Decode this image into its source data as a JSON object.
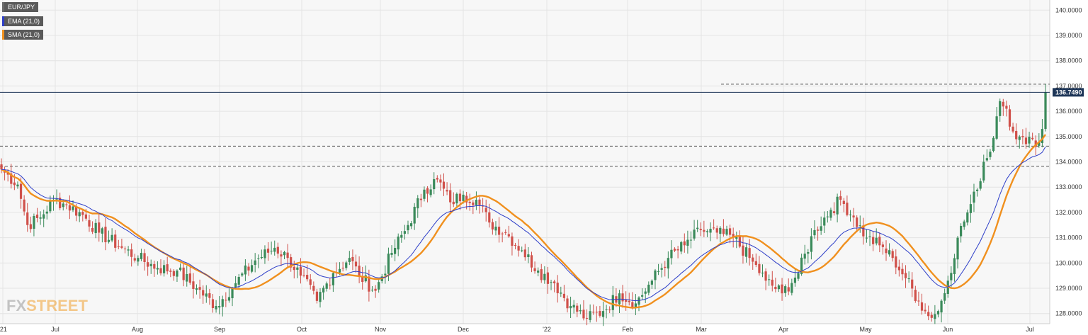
{
  "legend": {
    "price_label": "EUR/JPY",
    "ema_label": "EMA (21,0)",
    "sma_label": "SMA (21,0)"
  },
  "logo": {
    "fx": "FX",
    "street": "STREET"
  },
  "colors": {
    "up": "#3a8a5a",
    "down": "#d0504a",
    "ema": "#2d3ec8",
    "sma": "#f0901e",
    "last_price_bg": "#1d3557",
    "plot_bg": "#f7f7f7"
  },
  "chart_data": {
    "type": "candlestick",
    "symbol": "EUR/JPY",
    "ylim": [
      127.6,
      140.4
    ],
    "y_ticks": [
      "128.0000",
      "129.0000",
      "130.0000",
      "131.0000",
      "132.0000",
      "133.0000",
      "134.0000",
      "135.0000",
      "136.0000",
      "137.0000",
      "138.0000",
      "139.0000",
      "140.0000"
    ],
    "x_ticks": [
      "'21",
      "Jul",
      "Aug",
      "Sep",
      "Oct",
      "Nov",
      "Dec",
      "'22",
      "Feb",
      "Mar",
      "Apr",
      "May",
      "Jun",
      "Jul"
    ],
    "last_price": "136.7490",
    "horizontal_levels": [
      137.07,
      134.62,
      133.82
    ],
    "close_anchors": [
      [
        0,
        133.7
      ],
      [
        5,
        133.1
      ],
      [
        8,
        131.5
      ],
      [
        12,
        131.8
      ],
      [
        16,
        132.5
      ],
      [
        20,
        132.3
      ],
      [
        25,
        131.9
      ],
      [
        30,
        131.2
      ],
      [
        37,
        130.6
      ],
      [
        42,
        130.2
      ],
      [
        48,
        129.8
      ],
      [
        54,
        129.7
      ],
      [
        60,
        129.0
      ],
      [
        66,
        128.3
      ],
      [
        72,
        129.2
      ],
      [
        78,
        130.1
      ],
      [
        84,
        130.6
      ],
      [
        88,
        130.2
      ],
      [
        92,
        129.5
      ],
      [
        97,
        128.5
      ],
      [
        102,
        129.6
      ],
      [
        107,
        130.2
      ],
      [
        110,
        129.5
      ],
      [
        115,
        128.9
      ],
      [
        120,
        130.4
      ],
      [
        125,
        131.5
      ],
      [
        130,
        132.9
      ],
      [
        134,
        133.3
      ],
      [
        138,
        132.4
      ],
      [
        142,
        132.7
      ],
      [
        146,
        132.5
      ],
      [
        150,
        131.6
      ],
      [
        155,
        131.2
      ],
      [
        160,
        130.5
      ],
      [
        165,
        129.7
      ],
      [
        170,
        129.2
      ],
      [
        175,
        128.3
      ],
      [
        180,
        127.8
      ],
      [
        185,
        128.1
      ],
      [
        190,
        128.8
      ],
      [
        195,
        128.4
      ],
      [
        200,
        129.3
      ],
      [
        205,
        130.2
      ],
      [
        210,
        130.7
      ],
      [
        215,
        131.3
      ],
      [
        220,
        131.2
      ],
      [
        225,
        131.0
      ],
      [
        230,
        130.2
      ],
      [
        235,
        129.3
      ],
      [
        240,
        128.8
      ],
      [
        245,
        129.6
      ],
      [
        250,
        131.3
      ],
      [
        255,
        132.1
      ],
      [
        258,
        132.5
      ],
      [
        262,
        131.8
      ],
      [
        266,
        131.0
      ],
      [
        270,
        130.7
      ],
      [
        274,
        130.2
      ],
      [
        278,
        129.4
      ],
      [
        282,
        128.5
      ],
      [
        285,
        127.9
      ],
      [
        288,
        128.1
      ],
      [
        291,
        129.3
      ],
      [
        294,
        131.0
      ],
      [
        297,
        132.0
      ],
      [
        300,
        132.9
      ],
      [
        302,
        134.0
      ],
      [
        304,
        134.4
      ],
      [
        306,
        135.8
      ],
      [
        307,
        136.4
      ],
      [
        309,
        136.1
      ],
      [
        311,
        135.2
      ],
      [
        313,
        135.0
      ],
      [
        315,
        134.7
      ],
      [
        317,
        134.9
      ],
      [
        319,
        134.8
      ],
      [
        320,
        135.3
      ],
      [
        321,
        136.75
      ]
    ],
    "ema_period": 21,
    "sma_period": 21,
    "ylabel": ""
  }
}
